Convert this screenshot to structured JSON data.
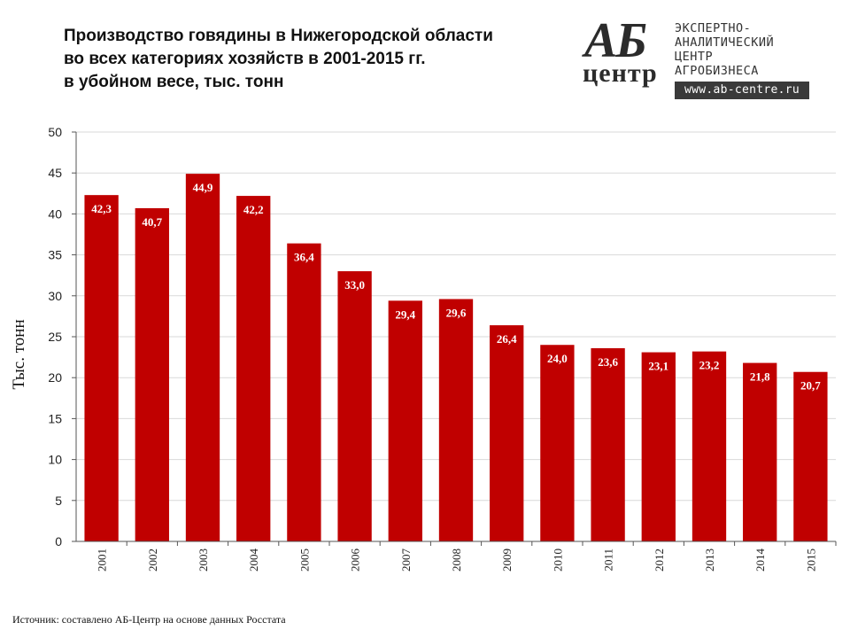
{
  "header": {
    "title_lines": [
      "Производство говядины в Нижегородской области",
      "во всех категориях хозяйств в 2001-2015 гг.",
      "в убойном весе, тыс. тонн"
    ]
  },
  "logo": {
    "mark_letters": "АБ",
    "mark_word": "центр",
    "desc_lines": [
      "ЭКСПЕРТНО-",
      "АНАЛИТИЧЕСКИЙ",
      "ЦЕНТР",
      "АГРОБИЗНЕСА"
    ],
    "url": "www.ab-centre.ru"
  },
  "source": "Источник: составлено АБ-Центр на основе данных Росстата",
  "chart_data": {
    "type": "bar",
    "categories": [
      "2001",
      "2002",
      "2003",
      "2004",
      "2005",
      "2006",
      "2007",
      "2008",
      "2009",
      "2010",
      "2011",
      "2012",
      "2013",
      "2014",
      "2015"
    ],
    "values": [
      42.3,
      40.7,
      44.9,
      42.2,
      36.4,
      33.0,
      29.4,
      29.6,
      26.4,
      24.0,
      23.6,
      23.1,
      23.2,
      21.8,
      20.7
    ],
    "data_labels": [
      "42,3",
      "40,7",
      "44,9",
      "42,2",
      "36,4",
      "33,0",
      "29,4",
      "29,6",
      "26,4",
      "24,0",
      "23,6",
      "23,1",
      "23,2",
      "21,8",
      "20,7"
    ],
    "ylabel": "Тыс. тонн",
    "ylim": [
      0,
      50
    ],
    "yticks": [
      0,
      5,
      10,
      15,
      20,
      25,
      30,
      35,
      40,
      45,
      50
    ],
    "grid": true,
    "bar_color": "#c00000",
    "grid_color": "#d9d9d9",
    "legend": "none"
  }
}
